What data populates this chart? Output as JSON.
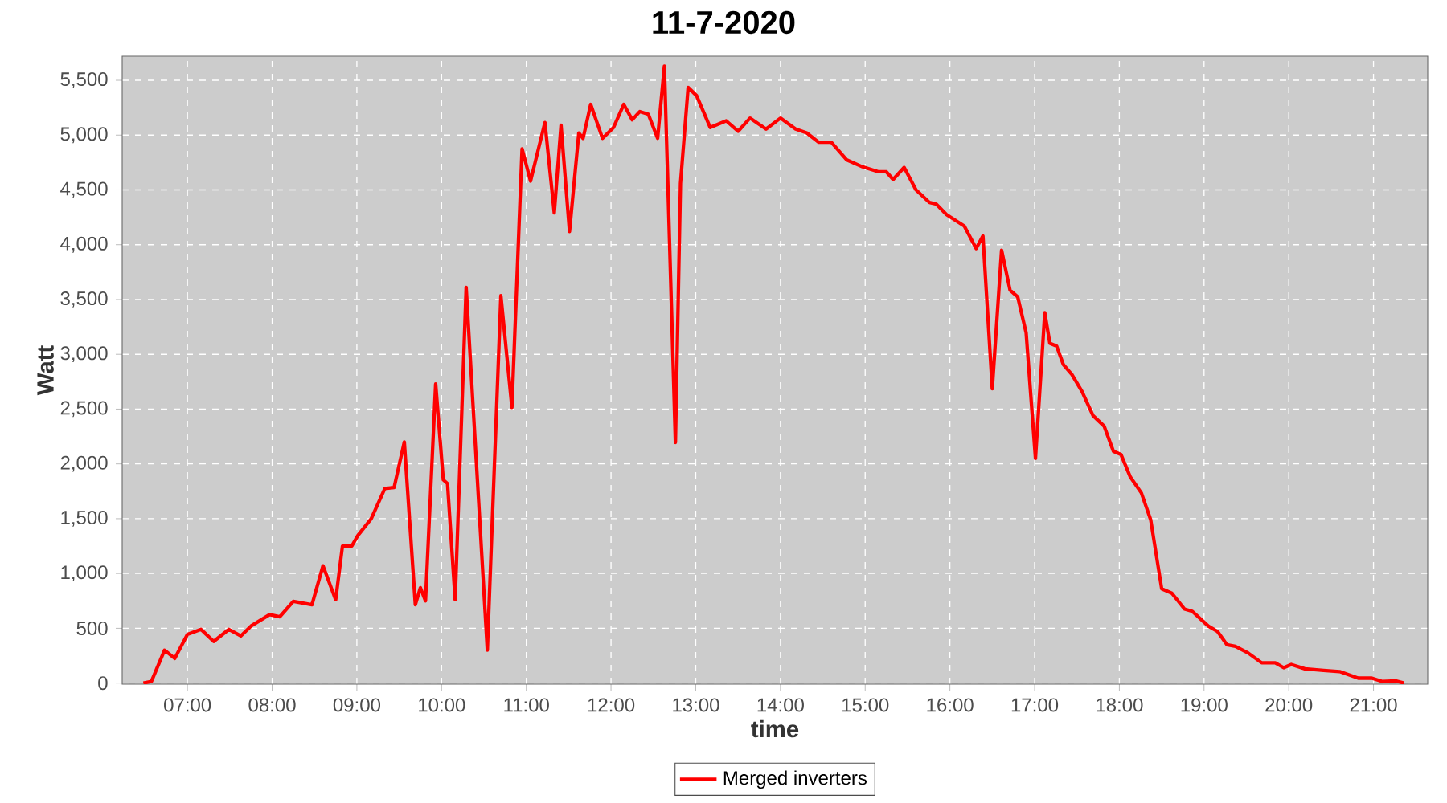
{
  "chart_data": {
    "type": "line",
    "title": "11-7-2020",
    "xlabel": "time",
    "ylabel": "Watt",
    "x": [
      6.48,
      6.575,
      6.73,
      6.85,
      7.0,
      7.16,
      7.31,
      7.49,
      7.63,
      7.75,
      7.97,
      8.09,
      8.25,
      8.47,
      8.6,
      8.75,
      8.83,
      8.94,
      9.01,
      9.17,
      9.33,
      9.44,
      9.56,
      9.69,
      9.75,
      9.81,
      9.93,
      10.02,
      10.07,
      10.16,
      10.29,
      10.54,
      10.7,
      10.83,
      10.95,
      11.05,
      11.22,
      11.33,
      11.41,
      11.51,
      11.62,
      11.67,
      11.76,
      11.9,
      12.03,
      12.15,
      12.25,
      12.34,
      12.44,
      12.55,
      12.63,
      12.76,
      12.82,
      12.91,
      13.01,
      13.17,
      13.36,
      13.5,
      13.64,
      13.83,
      14.0,
      14.18,
      14.31,
      14.45,
      14.6,
      14.78,
      14.97,
      15.16,
      15.25,
      15.33,
      15.46,
      15.6,
      15.76,
      15.84,
      15.96,
      16.17,
      16.31,
      16.39,
      16.5,
      16.61,
      16.71,
      16.8,
      16.9,
      17.01,
      17.12,
      17.18,
      17.26,
      17.34,
      17.44,
      17.56,
      17.69,
      17.82,
      17.93,
      18.02,
      18.13,
      18.26,
      18.37,
      18.5,
      18.62,
      18.77,
      18.86,
      19.05,
      19.16,
      19.27,
      19.37,
      19.52,
      19.68,
      19.84,
      19.94,
      20.03,
      20.19,
      20.41,
      20.6,
      20.82,
      20.98,
      21.1,
      21.26,
      21.36
    ],
    "series": [
      {
        "name": "Merged inverters",
        "color": "#ff0000",
        "values": [
          0,
          15,
          300,
          225,
          445,
          490,
          380,
          490,
          430,
          520,
          625,
          605,
          745,
          715,
          1070,
          760,
          1250,
          1250,
          1345,
          1500,
          1775,
          1785,
          2200,
          715,
          870,
          750,
          2730,
          1855,
          1820,
          760,
          3610,
          300,
          3535,
          2515,
          4875,
          4580,
          5115,
          4290,
          5090,
          4120,
          5020,
          4970,
          5280,
          4970,
          5070,
          5280,
          5140,
          5215,
          5190,
          4970,
          5630,
          2195,
          4560,
          5435,
          5360,
          5070,
          5130,
          5035,
          5155,
          5055,
          5155,
          5055,
          5020,
          4935,
          4935,
          4775,
          4710,
          4665,
          4665,
          4595,
          4705,
          4500,
          4385,
          4370,
          4275,
          4170,
          3965,
          4080,
          2685,
          3950,
          3585,
          3525,
          3195,
          2050,
          3380,
          3100,
          3075,
          2905,
          2815,
          2660,
          2440,
          2345,
          2115,
          2085,
          1880,
          1735,
          1490,
          860,
          820,
          675,
          655,
          520,
          470,
          350,
          335,
          275,
          185,
          185,
          140,
          170,
          130,
          115,
          105,
          45,
          45,
          15,
          20,
          0
        ]
      }
    ],
    "xlim": [
      6.23,
      21.64
    ],
    "ylim": [
      -10,
      5720
    ],
    "xticks": [
      {
        "value": 7,
        "label": "07:00"
      },
      {
        "value": 8,
        "label": "08:00"
      },
      {
        "value": 9,
        "label": "09:00"
      },
      {
        "value": 10,
        "label": "10:00"
      },
      {
        "value": 11,
        "label": "11:00"
      },
      {
        "value": 12,
        "label": "12:00"
      },
      {
        "value": 13,
        "label": "13:00"
      },
      {
        "value": 14,
        "label": "14:00"
      },
      {
        "value": 15,
        "label": "15:00"
      },
      {
        "value": 16,
        "label": "16:00"
      },
      {
        "value": 17,
        "label": "17:00"
      },
      {
        "value": 18,
        "label": "18:00"
      },
      {
        "value": 19,
        "label": "19:00"
      },
      {
        "value": 20,
        "label": "20:00"
      },
      {
        "value": 21,
        "label": "21:00"
      }
    ],
    "yticks": [
      0,
      500,
      {
        "value": 1000,
        "label": "1,000"
      },
      {
        "value": 1500,
        "label": "1,500"
      },
      {
        "value": 2000,
        "label": "2,000"
      },
      {
        "value": 2500,
        "label": "2,500"
      },
      {
        "value": 3000,
        "label": "3,000"
      },
      {
        "value": 3500,
        "label": "3,500"
      },
      {
        "value": 4000,
        "label": "4,000"
      },
      {
        "value": 4500,
        "label": "4,500"
      },
      {
        "value": 5000,
        "label": "5,000"
      },
      {
        "value": 5500,
        "label": "5,500"
      }
    ],
    "grid": true,
    "legend": "bottom"
  }
}
